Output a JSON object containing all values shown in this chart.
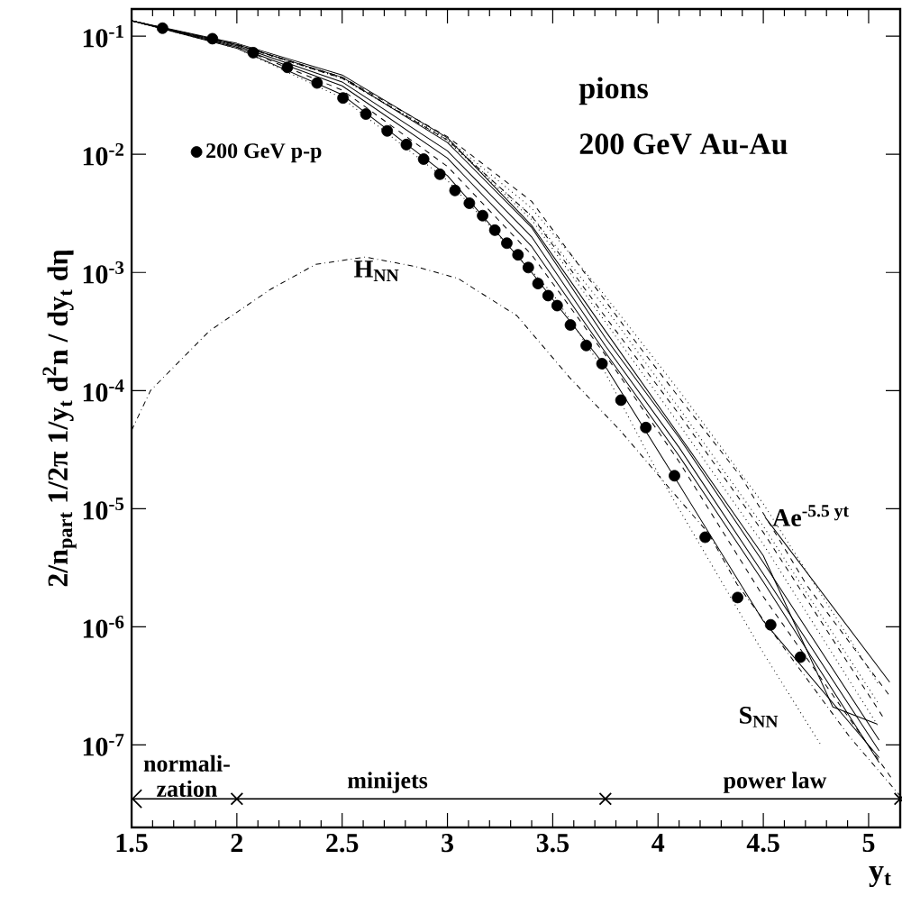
{
  "chart_data": {
    "type": "line",
    "xlabel": "y$_{t}$",
    "ylabel": "2/n$_{part}$ 1/2π 1/y$_{t}$ d$^{2}$n / dy$_{t}$ dη",
    "log": "y",
    "legend": "top left",
    "xlim": [
      1.5,
      5.15
    ],
    "ylim": [
      2e-08,
      0.17
    ],
    "xticks": [
      1.5,
      2,
      2.5,
      3,
      3.5,
      4,
      4.5,
      5
    ],
    "yticks": [
      {
        "value": 1e-07,
        "label": "10$^{-7}$"
      },
      {
        "value": 1e-06,
        "label": "10$^{-6}$"
      },
      {
        "value": 1e-05,
        "label": "10$^{-5}$"
      },
      {
        "value": 0.0001,
        "label": "10$^{-4}$"
      },
      {
        "value": 0.001,
        "label": "10$^{-3}$"
      },
      {
        "value": 0.01,
        "label": "10$^{-2}$"
      },
      {
        "value": 0.1,
        "label": "10$^{-1}$"
      }
    ],
    "series": [
      {
        "line_style": "solid",
        "color": "#000000",
        "x": [
          1.5,
          2.0,
          2.5,
          3.0,
          3.4,
          3.75,
          4.1,
          4.5,
          5.05
        ],
        "values": [
          0.135,
          0.085,
          0.045,
          0.0126,
          0.0024,
          0.00028,
          4e-05,
          3.5e-06,
          1.1e-07
        ]
      },
      {
        "line_style": "solid",
        "color": "#000000",
        "x": [
          1.5,
          2.0,
          2.5,
          3.0,
          3.4,
          3.75,
          4.1,
          4.5,
          5.05
        ],
        "values": [
          0.135,
          0.083,
          0.041,
          0.0107,
          0.002,
          0.00024,
          3.3e-05,
          2.8e-06,
          8.9e-08
        ]
      },
      {
        "line_style": "solid",
        "color": "#000000",
        "x": [
          1.5,
          2.0,
          2.5,
          3.0,
          3.4,
          3.75,
          4.1,
          4.5,
          5.05
        ],
        "values": [
          0.135,
          0.081,
          0.038,
          0.0093,
          0.00166,
          0.00021,
          2.8e-05,
          2.4e-06,
          7.1e-08
        ]
      },
      {
        "line_style": "solid",
        "color": "#000000",
        "x": [
          1.5,
          2.0,
          2.5,
          3.0,
          3.4,
          3.75,
          4.1,
          4.5,
          5.05
        ],
        "values": [
          0.135,
          0.079,
          0.032,
          0.0066,
          0.001,
          0.00016,
          1.6e-05,
          1.12e-06,
          7.8e-08
        ]
      },
      {
        "line_style": "solid",
        "color": "#000000",
        "x": [
          1.5,
          2.0,
          2.5,
          3.0,
          3.4,
          3.75,
          4.1,
          4.5,
          4.83,
          5.04
        ],
        "values": [
          0.135,
          0.087,
          0.047,
          0.0138,
          0.0025,
          0.00032,
          4.2e-05,
          4e-06,
          2.1e-07,
          1.5e-07
        ]
      },
      {
        "line_style": "dashed",
        "color": "#000000",
        "x": [
          1.5,
          2.0,
          2.5,
          3.0,
          3.4,
          3.9,
          4.4,
          4.71,
          5.1
        ],
        "values": [
          0.135,
          0.085,
          0.045,
          0.0141,
          0.004,
          0.00025,
          1.8e-05,
          2.2e-06,
          2.6e-07
        ]
      },
      {
        "line_style": "dashed",
        "color": "#000000",
        "x": [
          1.5,
          2.0,
          2.5,
          3.0,
          3.4,
          3.75,
          4.1,
          4.5,
          5.08
        ],
        "values": [
          0.135,
          0.085,
          0.044,
          0.0132,
          0.003,
          0.00042,
          6.3e-05,
          6.3e-06,
          1.6e-07
        ]
      },
      {
        "line_style": "dashed",
        "color": "#000000",
        "x": [
          1.5,
          2.0,
          2.5,
          3.0,
          3.4,
          3.75,
          4.1,
          4.5,
          5.12
        ],
        "values": [
          0.135,
          0.081,
          0.035,
          0.0079,
          0.00141,
          0.0002,
          2.5e-05,
          1.8e-06,
          4.9e-08
        ]
      },
      {
        "line_style": "dotted",
        "color": "#000000",
        "x": [
          1.5,
          2.0,
          2.5,
          3.0,
          3.4,
          3.75,
          4.1,
          4.5,
          5.05
        ],
        "values": [
          0.135,
          0.085,
          0.044,
          0.0135,
          0.0035,
          0.00063,
          0.0001,
          1.1e-05,
          3.2e-07
        ]
      },
      {
        "line_style": "dotted",
        "color": "#000000",
        "x": [
          1.5,
          2.0,
          2.5,
          3.0,
          3.4,
          3.75,
          4.1,
          4.5,
          5.05
        ],
        "values": [
          0.135,
          0.085,
          0.044,
          0.0132,
          0.003,
          0.0005,
          7.1e-05,
          7.1e-06,
          2.2e-07
        ]
      },
      {
        "line_style": "dotted",
        "color": "#000000",
        "x": [
          1.5,
          2.0,
          2.5,
          3.0,
          3.4,
          3.75,
          4.1,
          4.5,
          5.05
        ],
        "values": [
          0.135,
          0.085,
          0.044,
          0.013,
          0.0028,
          0.00038,
          5.2e-05,
          5e-06,
          1.4e-07
        ]
      },
      {
        "line_style": "dotted",
        "color": "#000000",
        "x": [
          1.5,
          2.0,
          2.5,
          3.0,
          3.5,
          3.75,
          4.0,
          4.5,
          4.77
        ],
        "values": [
          0.135,
          0.079,
          0.03,
          0.006,
          0.00066,
          0.000141,
          2e-05,
          6e-07,
          1.02e-07
        ]
      },
      {
        "line_style": "dashdot",
        "color": "#000000",
        "x": [
          1.5,
          1.59,
          1.87,
          2.16,
          2.374,
          2.61,
          2.85,
          3.05,
          3.33,
          3.58,
          3.82,
          4.07,
          4.24,
          4.375,
          4.91,
          5.15
        ],
        "values": [
          4.6e-05,
          0.0001,
          0.00032,
          0.00072,
          0.00117,
          0.00135,
          0.00112,
          0.00089,
          0.00043,
          0.000129,
          4.6e-05,
          1.38e-05,
          6.2e-06,
          2.3e-06,
          1.17e-07,
          3.7e-08
        ]
      },
      {
        "line_style": "solid",
        "color": "#000000",
        "x": [
          4.508,
          5.1
        ],
        "values": [
          8.5e-06,
          3.4e-07
        ]
      },
      {
        "type": "scatter",
        "name": "200 GeV p-p",
        "marker": "circle",
        "color": "#000000",
        "x": [
          1.647,
          1.884,
          2.078,
          2.24,
          2.381,
          2.504,
          2.613,
          2.714,
          2.805,
          2.887,
          2.964,
          3.036,
          3.104,
          3.167,
          3.225,
          3.282,
          3.335,
          3.384,
          3.43,
          3.478,
          3.521,
          3.584,
          3.659,
          3.734,
          3.824,
          3.942,
          4.078,
          4.224,
          4.378,
          4.535,
          4.676
        ],
        "values": [
          0.117,
          0.0953,
          0.0726,
          0.0545,
          0.0402,
          0.03,
          0.0219,
          0.0158,
          0.0121,
          0.0091,
          0.00678,
          0.00495,
          0.00386,
          0.00303,
          0.00228,
          0.00177,
          0.00141,
          0.0011,
          0.000805,
          0.000637,
          0.000524,
          0.000359,
          0.000241,
          0.000169,
          8.3e-05,
          4.86e-05,
          1.9e-05,
          5.73e-06,
          1.77e-06,
          1.04e-06,
          5.53e-07
        ]
      },
      {
        "type": "scatter",
        "marker": "cross",
        "color": "#000000",
        "x": [
          2,
          3.75,
          5.15
        ],
        "values": [
          3.5e-08,
          3.5e-08,
          3.5e-08
        ]
      },
      {
        "type": "line",
        "line_style": "solid",
        "color": "#000000",
        "x": [
          1.5,
          2,
          3.75,
          5.15
        ],
        "values": [
          3.5e-08,
          3.5e-08,
          3.5e-08,
          3.5e-08
        ]
      }
    ],
    "annotations": [
      "pions",
      "200 GeV Au-Au",
      "H$_{NN}$",
      "S$_{NN}$",
      "Ae$^{-5.5 yt}$",
      "normali- zation",
      "minijets",
      "power law"
    ]
  }
}
